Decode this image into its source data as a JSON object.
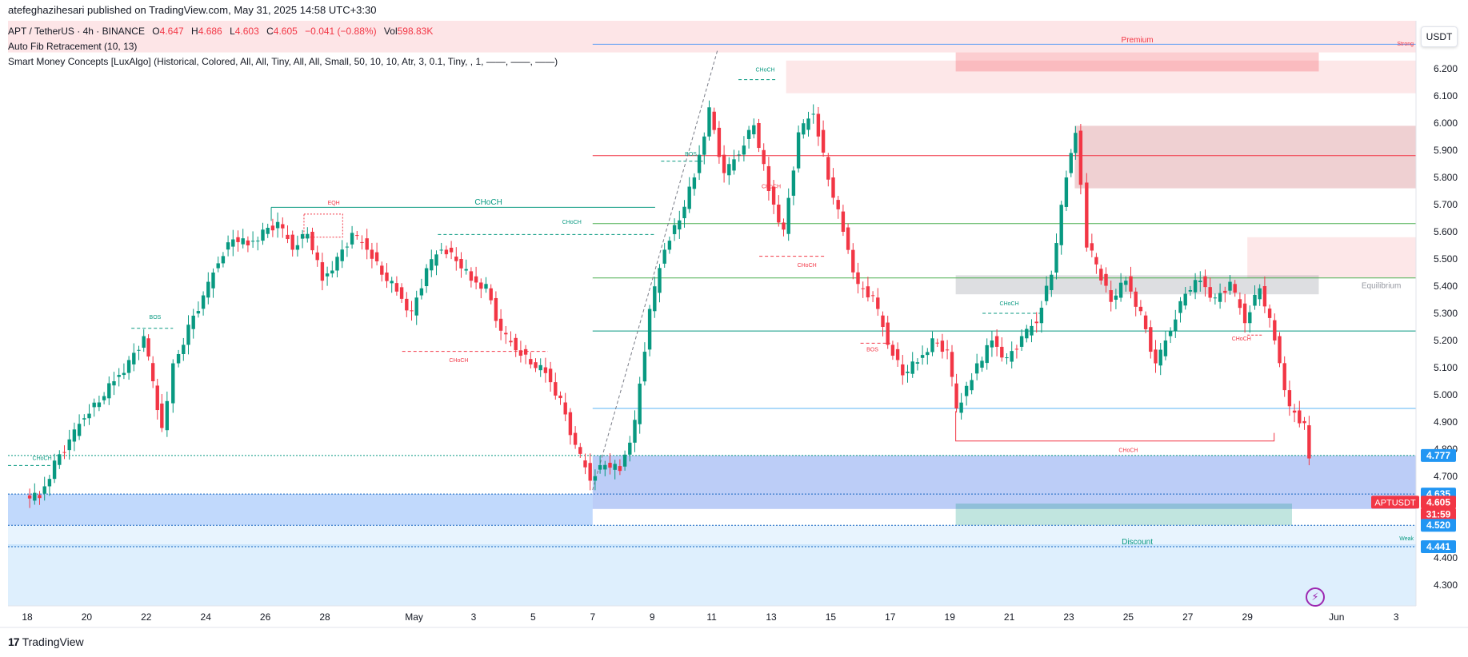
{
  "header": {
    "publisher_text": "atefeghazihesari published on TradingView.com, May 31, 2025 14:58 UTC+3:30"
  },
  "legend": {
    "symbol": "APT / TetherUS · 4h · BINANCE",
    "open_label": "O",
    "open": "4.647",
    "high_label": "H",
    "high": "4.686",
    "low_label": "L",
    "low": "4.603",
    "close_label": "C",
    "close": "4.605",
    "change": "−0.041 (−0.88%)",
    "vol_label": "Vol",
    "vol": "598.83K",
    "indicator1": "Auto Fib Retracement (10, 13)",
    "indicator2": "Smart Money Concepts [LuxAlgo] (Historical, Colored, All, All, Tiny, All, All, Small, 50, 10, 10, Atr, 3, 0.1, Tiny, , 1, ——, ——, ——)"
  },
  "price_axis": {
    "unit_button": "USDT",
    "ticks": [
      "6.200",
      "6.100",
      "6.000",
      "5.900",
      "5.800",
      "5.700",
      "5.600",
      "5.500",
      "5.400",
      "5.300",
      "5.200",
      "5.100",
      "5.000",
      "4.900",
      "4.800",
      "4.700",
      "4.400",
      "4.300"
    ],
    "markers": [
      {
        "label": "4.777",
        "price": 4.777,
        "color": "#2196f3"
      },
      {
        "label": "4.635",
        "price": 4.635,
        "color": "#2196f3"
      },
      {
        "label": "4.605",
        "price": 4.605,
        "color": "#f23645"
      },
      {
        "label": "31:59",
        "price": 4.56,
        "color": "#f23645"
      },
      {
        "label": "4.520",
        "price": 4.52,
        "color": "#2196f3"
      },
      {
        "label": "4.441",
        "price": 4.441,
        "color": "#2196f3"
      }
    ],
    "symbol_tag": "APTUSDT"
  },
  "time_axis": {
    "labels": [
      {
        "text": "18",
        "day": 0
      },
      {
        "text": "20",
        "day": 2
      },
      {
        "text": "22",
        "day": 4
      },
      {
        "text": "24",
        "day": 6
      },
      {
        "text": "26",
        "day": 8
      },
      {
        "text": "28",
        "day": 10
      },
      {
        "text": "May",
        "day": 13
      },
      {
        "text": "3",
        "day": 15
      },
      {
        "text": "5",
        "day": 17
      },
      {
        "text": "7",
        "day": 19
      },
      {
        "text": "9",
        "day": 21
      },
      {
        "text": "11",
        "day": 23
      },
      {
        "text": "13",
        "day": 25
      },
      {
        "text": "15",
        "day": 27
      },
      {
        "text": "17",
        "day": 29
      },
      {
        "text": "19",
        "day": 31
      },
      {
        "text": "21",
        "day": 33
      },
      {
        "text": "23",
        "day": 35
      },
      {
        "text": "25",
        "day": 37
      },
      {
        "text": "27",
        "day": 39
      },
      {
        "text": "29",
        "day": 41
      },
      {
        "text": "Jun",
        "day": 44
      },
      {
        "text": "3",
        "day": 46
      }
    ]
  },
  "zones": [
    {
      "label": "Premium",
      "top": 6.35,
      "bottom": 6.225,
      "color": "rgba(242,54,69,0.15)",
      "text_color": "#f23645",
      "side_label": "Strong"
    },
    {
      "label": "Equilibrium",
      "top": 5.44,
      "bottom": 5.37,
      "color": "rgba(120,123,134,0.25)",
      "text_color": "#9598a1"
    },
    {
      "label": "Discount",
      "top": 4.52,
      "bottom": 4.45,
      "color": "rgba(33,150,243,0.18)",
      "text_color": "#089981",
      "side_label": "Weak"
    }
  ],
  "annotations": [
    {
      "text": "CHoCH",
      "day": 15.5,
      "price": 5.7,
      "color": "#089981"
    },
    {
      "text": "CHoCH",
      "day": 18.3,
      "price": 5.63,
      "color": "#089981"
    },
    {
      "text": "CHoCH",
      "day": 24.8,
      "price": 6.19,
      "color": "#089981"
    },
    {
      "text": "CHoCH",
      "day": 33,
      "price": 5.33,
      "color": "#089981"
    },
    {
      "text": "CHoCH",
      "day": 14.5,
      "price": 5.12,
      "color": "#f23645"
    },
    {
      "text": "CHoCH",
      "day": 25,
      "price": 5.76,
      "color": "#f23645"
    },
    {
      "text": "CHoCH",
      "day": 26.2,
      "price": 5.47,
      "color": "#f23645"
    },
    {
      "text": "CHoCH",
      "day": 40.8,
      "price": 5.2,
      "color": "#f23645"
    },
    {
      "text": "CHoCH",
      "day": 37,
      "price": 4.79,
      "color": "#f23645"
    },
    {
      "text": "CHoCH",
      "day": 0.5,
      "price": 4.76,
      "color": "#089981"
    },
    {
      "text": "BOS",
      "day": 4.3,
      "price": 5.28,
      "color": "#089981"
    },
    {
      "text": "BOS",
      "day": 22.3,
      "price": 5.88,
      "color": "#089981"
    },
    {
      "text": "BOS",
      "day": 28.4,
      "price": 5.16,
      "color": "#f23645"
    },
    {
      "text": "EQH",
      "day": 10.3,
      "price": 5.7,
      "color": "#f23645"
    }
  ],
  "brand": {
    "name": "TradingView"
  },
  "colors": {
    "up": "#089981",
    "down": "#f23645",
    "accent": "#2196f3"
  }
}
